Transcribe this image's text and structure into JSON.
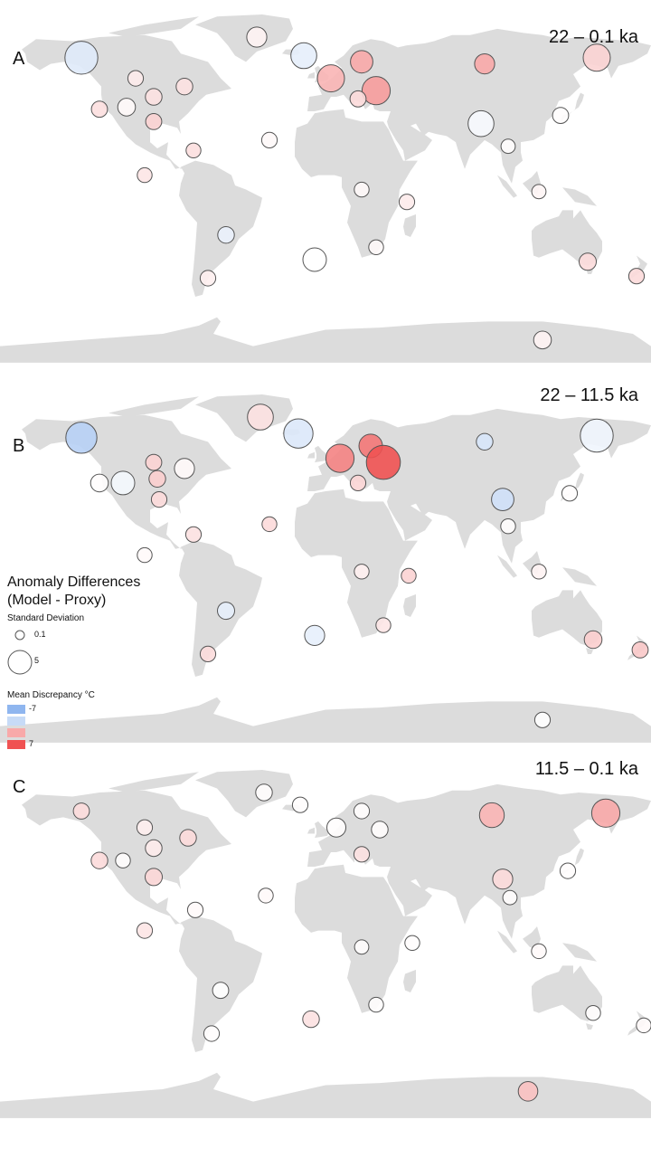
{
  "map": {
    "land_color": "#dcdcdc",
    "stroke_color": "#555555",
    "cold_color": "#8fb6ef",
    "warm_color": "#f05252",
    "neutral_color": "#ffffff"
  },
  "panels": [
    {
      "letter": "A",
      "range": "22 – 0.1 ka",
      "sites": [
        {
          "lon": -135,
          "lat": 62,
          "sd": 3.8,
          "md": -2.0
        },
        {
          "lon": -105,
          "lat": 52,
          "sd": 0.8,
          "md": 0.8
        },
        {
          "lon": -95,
          "lat": 43,
          "sd": 1.0,
          "md": 1.2
        },
        {
          "lon": -78,
          "lat": 48,
          "sd": 1.0,
          "md": 1.2
        },
        {
          "lon": -125,
          "lat": 37,
          "sd": 0.9,
          "md": 1.3
        },
        {
          "lon": -110,
          "lat": 38,
          "sd": 1.2,
          "md": 0.2
        },
        {
          "lon": -95,
          "lat": 31,
          "sd": 0.9,
          "md": 1.8
        },
        {
          "lon": -38,
          "lat": 72,
          "sd": 1.6,
          "md": 0.5
        },
        {
          "lon": -12,
          "lat": 63,
          "sd": 2.6,
          "md": -1.6
        },
        {
          "lon": 3,
          "lat": 52,
          "sd": 2.8,
          "md": 3.0
        },
        {
          "lon": 20,
          "lat": 60,
          "sd": 2.0,
          "md": 3.5
        },
        {
          "lon": 28,
          "lat": 46,
          "sd": 3.0,
          "md": 4.0
        },
        {
          "lon": 18,
          "lat": 42,
          "sd": 0.9,
          "md": 1.5
        },
        {
          "lon": 88,
          "lat": 59,
          "sd": 1.6,
          "md": 3.5
        },
        {
          "lon": 150,
          "lat": 62,
          "sd": 2.8,
          "md": 1.8
        },
        {
          "lon": 86,
          "lat": 30,
          "sd": 2.6,
          "md": -0.5
        },
        {
          "lon": 130,
          "lat": 34,
          "sd": 0.9,
          "md": 0.1
        },
        {
          "lon": 101,
          "lat": 19,
          "sd": 0.6,
          "md": 0.1
        },
        {
          "lon": -73,
          "lat": 17,
          "sd": 0.7,
          "md": 1.3
        },
        {
          "lon": -31,
          "lat": 22,
          "sd": 0.8,
          "md": 0.3
        },
        {
          "lon": -100,
          "lat": 5,
          "sd": 0.7,
          "md": 1.0
        },
        {
          "lon": 20,
          "lat": -2,
          "sd": 0.7,
          "md": 0.3
        },
        {
          "lon": 45,
          "lat": -8,
          "sd": 0.8,
          "md": 0.8
        },
        {
          "lon": 118,
          "lat": -3,
          "sd": 0.6,
          "md": 0.4
        },
        {
          "lon": -55,
          "lat": -24,
          "sd": 1.0,
          "md": -1.3
        },
        {
          "lon": -6,
          "lat": -36,
          "sd": 2.2,
          "md": 0.0
        },
        {
          "lon": 28,
          "lat": -30,
          "sd": 0.7,
          "md": 0.3
        },
        {
          "lon": -65,
          "lat": -45,
          "sd": 0.8,
          "md": 0.6
        },
        {
          "lon": 145,
          "lat": -37,
          "sd": 1.1,
          "md": 1.4
        },
        {
          "lon": 172,
          "lat": -44,
          "sd": 0.8,
          "md": 1.5
        },
        {
          "lon": 120,
          "lat": -75,
          "sd": 1.2,
          "md": 0.5
        }
      ]
    },
    {
      "letter": "B",
      "range": "22 – 11.5 ka",
      "sites": [
        {
          "lon": -135,
          "lat": 62,
          "sd": 3.5,
          "md": -4.5
        },
        {
          "lon": -95,
          "lat": 50,
          "sd": 0.9,
          "md": 1.8
        },
        {
          "lon": -78,
          "lat": 47,
          "sd": 1.6,
          "md": 0.2
        },
        {
          "lon": -125,
          "lat": 40,
          "sd": 1.2,
          "md": 0.1
        },
        {
          "lon": -112,
          "lat": 40,
          "sd": 2.2,
          "md": -0.7
        },
        {
          "lon": -93,
          "lat": 42,
          "sd": 1.0,
          "md": 2.0
        },
        {
          "lon": -92,
          "lat": 32,
          "sd": 0.8,
          "md": 1.5
        },
        {
          "lon": -36,
          "lat": 72,
          "sd": 2.6,
          "md": 1.2
        },
        {
          "lon": -15,
          "lat": 64,
          "sd": 3.2,
          "md": -2.2
        },
        {
          "lon": 8,
          "lat": 52,
          "sd": 3.0,
          "md": 5.0
        },
        {
          "lon": 25,
          "lat": 58,
          "sd": 2.2,
          "md": 5.5
        },
        {
          "lon": 32,
          "lat": 50,
          "sd": 4.0,
          "md": 7.0
        },
        {
          "lon": 18,
          "lat": 40,
          "sd": 0.8,
          "md": 1.7
        },
        {
          "lon": 88,
          "lat": 60,
          "sd": 1.0,
          "md": -2.5
        },
        {
          "lon": 150,
          "lat": 63,
          "sd": 3.8,
          "md": -1.0
        },
        {
          "lon": 98,
          "lat": 32,
          "sd": 2.0,
          "md": -3.0
        },
        {
          "lon": 135,
          "lat": 35,
          "sd": 0.8,
          "md": 0.1
        },
        {
          "lon": 101,
          "lat": 19,
          "sd": 0.7,
          "md": 0.1
        },
        {
          "lon": -73,
          "lat": 15,
          "sd": 0.8,
          "md": 1.2
        },
        {
          "lon": -31,
          "lat": 20,
          "sd": 0.7,
          "md": 1.5
        },
        {
          "lon": -100,
          "lat": 5,
          "sd": 0.7,
          "md": 0.2
        },
        {
          "lon": 20,
          "lat": -3,
          "sd": 0.7,
          "md": 0.6
        },
        {
          "lon": 46,
          "lat": -5,
          "sd": 0.7,
          "md": 1.8
        },
        {
          "lon": 118,
          "lat": -3,
          "sd": 0.7,
          "md": 0.5
        },
        {
          "lon": -55,
          "lat": -22,
          "sd": 1.1,
          "md": -1.6
        },
        {
          "lon": -6,
          "lat": -34,
          "sd": 1.6,
          "md": -1.5
        },
        {
          "lon": 32,
          "lat": -29,
          "sd": 0.7,
          "md": 1.0
        },
        {
          "lon": -65,
          "lat": -43,
          "sd": 0.8,
          "md": 1.4
        },
        {
          "lon": 148,
          "lat": -36,
          "sd": 1.2,
          "md": 2.0
        },
        {
          "lon": 174,
          "lat": -41,
          "sd": 0.9,
          "md": 2.2
        },
        {
          "lon": 120,
          "lat": -75,
          "sd": 0.8,
          "md": 0.0
        }
      ]
    },
    {
      "letter": "C",
      "range": "11.5 – 0.1 ka",
      "sites": [
        {
          "lon": -135,
          "lat": 63,
          "sd": 0.9,
          "md": 1.4
        },
        {
          "lon": -100,
          "lat": 55,
          "sd": 0.8,
          "md": 0.7
        },
        {
          "lon": -76,
          "lat": 50,
          "sd": 1.0,
          "md": 1.5
        },
        {
          "lon": -125,
          "lat": 39,
          "sd": 1.0,
          "md": 1.5
        },
        {
          "lon": -112,
          "lat": 39,
          "sd": 0.7,
          "md": 0.1
        },
        {
          "lon": -95,
          "lat": 45,
          "sd": 1.0,
          "md": 0.8
        },
        {
          "lon": -95,
          "lat": 31,
          "sd": 1.1,
          "md": 1.6
        },
        {
          "lon": -34,
          "lat": 72,
          "sd": 1.0,
          "md": 0.1
        },
        {
          "lon": -14,
          "lat": 66,
          "sd": 0.8,
          "md": 0.1
        },
        {
          "lon": 6,
          "lat": 55,
          "sd": 1.4,
          "md": 0.1
        },
        {
          "lon": 20,
          "lat": 63,
          "sd": 0.8,
          "md": 0.1
        },
        {
          "lon": 30,
          "lat": 54,
          "sd": 1.0,
          "md": 0.1
        },
        {
          "lon": 20,
          "lat": 42,
          "sd": 0.8,
          "md": 1.2
        },
        {
          "lon": 92,
          "lat": 61,
          "sd": 2.4,
          "md": 3.0
        },
        {
          "lon": 155,
          "lat": 62,
          "sd": 3.0,
          "md": 3.5
        },
        {
          "lon": 98,
          "lat": 30,
          "sd": 1.6,
          "md": 1.5
        },
        {
          "lon": 134,
          "lat": 34,
          "sd": 0.8,
          "md": 0.1
        },
        {
          "lon": 102,
          "lat": 21,
          "sd": 0.6,
          "md": 0.1
        },
        {
          "lon": -72,
          "lat": 15,
          "sd": 0.8,
          "md": 0.2
        },
        {
          "lon": -33,
          "lat": 22,
          "sd": 0.7,
          "md": 0.2
        },
        {
          "lon": -100,
          "lat": 5,
          "sd": 0.8,
          "md": 1.0
        },
        {
          "lon": 20,
          "lat": -3,
          "sd": 0.6,
          "md": 0.1
        },
        {
          "lon": 48,
          "lat": -1,
          "sd": 0.7,
          "md": 0.1
        },
        {
          "lon": 118,
          "lat": -5,
          "sd": 0.7,
          "md": 0.2
        },
        {
          "lon": -58,
          "lat": -24,
          "sd": 0.9,
          "md": 0.0
        },
        {
          "lon": -8,
          "lat": -38,
          "sd": 1.0,
          "md": 1.2
        },
        {
          "lon": 28,
          "lat": -31,
          "sd": 0.7,
          "md": 0.1
        },
        {
          "lon": -63,
          "lat": -45,
          "sd": 0.8,
          "md": 0.1
        },
        {
          "lon": 148,
          "lat": -35,
          "sd": 0.7,
          "md": 0.1
        },
        {
          "lon": 176,
          "lat": -41,
          "sd": 0.7,
          "md": 0.2
        },
        {
          "lon": 112,
          "lat": -73,
          "sd": 1.5,
          "md": 2.5
        }
      ]
    }
  ],
  "legend": {
    "title_line1": "Anomaly Differences",
    "title_line2": "(Model - Proxy)",
    "size_title": "Standard Deviation",
    "size_small_label": "0.1",
    "size_small_value": 0.1,
    "size_large_label": "5",
    "size_large_value": 5,
    "color_title": "Mean Discrepancy °C",
    "color_min_label": "-7",
    "color_max_label": "7",
    "color_swatch_values": [
      -7,
      -3.5,
      3.5,
      7
    ]
  }
}
